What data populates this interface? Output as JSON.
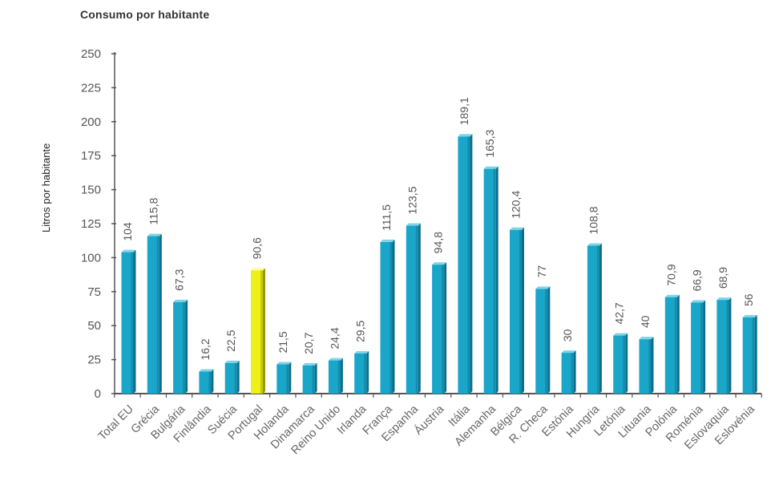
{
  "page": {
    "title": "Consumo por habitante"
  },
  "chart_data": {
    "type": "bar",
    "title": "Consumo por habitante",
    "xlabel": "",
    "ylabel": "Litros por habitante",
    "ylim": [
      0,
      250
    ],
    "yticks": [
      0,
      25,
      50,
      75,
      100,
      125,
      150,
      175,
      200,
      225,
      250
    ],
    "grid": false,
    "categories": [
      "Total EU",
      "Grécia",
      "Bulgária",
      "Finlândia",
      "Suécia",
      "Portugal",
      "Holanda",
      "Dinamarca",
      "Reino Unido",
      "Irlanda",
      "França",
      "Espanha",
      "Áustria",
      "Itália",
      "Alemanha",
      "Bélgica",
      "R. Checa",
      "Estónia",
      "Hungria",
      "Letónia",
      "Lituania",
      "Polónia",
      "Roménia",
      "Eslovaquia",
      "Eslovénia"
    ],
    "values": [
      104,
      115.8,
      67.3,
      16.2,
      22.5,
      90.6,
      21.5,
      20.7,
      24.4,
      29.5,
      111.5,
      123.5,
      94.8,
      189.1,
      165.3,
      120.4,
      77,
      30,
      108.8,
      42.7,
      40,
      70.9,
      66.9,
      68.9,
      56
    ],
    "value_labels": [
      "104",
      "115,8",
      "67,3",
      "16,2",
      "22,5",
      "90,6",
      "21,5",
      "20,7",
      "24,4",
      "29,5",
      "111,5",
      "123,5",
      "94,8",
      "189,1",
      "165,3",
      "120,4",
      "77",
      "30",
      "108,8",
      "42,7",
      "40",
      "70,9",
      "66,9",
      "68,9",
      "56"
    ],
    "highlight_category": "Portugal",
    "colors": {
      "bar": "#1aa6c9",
      "bar_dark": "#0a6f8c",
      "bar_light": "#7fd3e8",
      "highlight": "#eef01a",
      "highlight_dark": "#9a9a00",
      "highlight_light": "#fbfb9a",
      "axis": "#555555"
    }
  }
}
